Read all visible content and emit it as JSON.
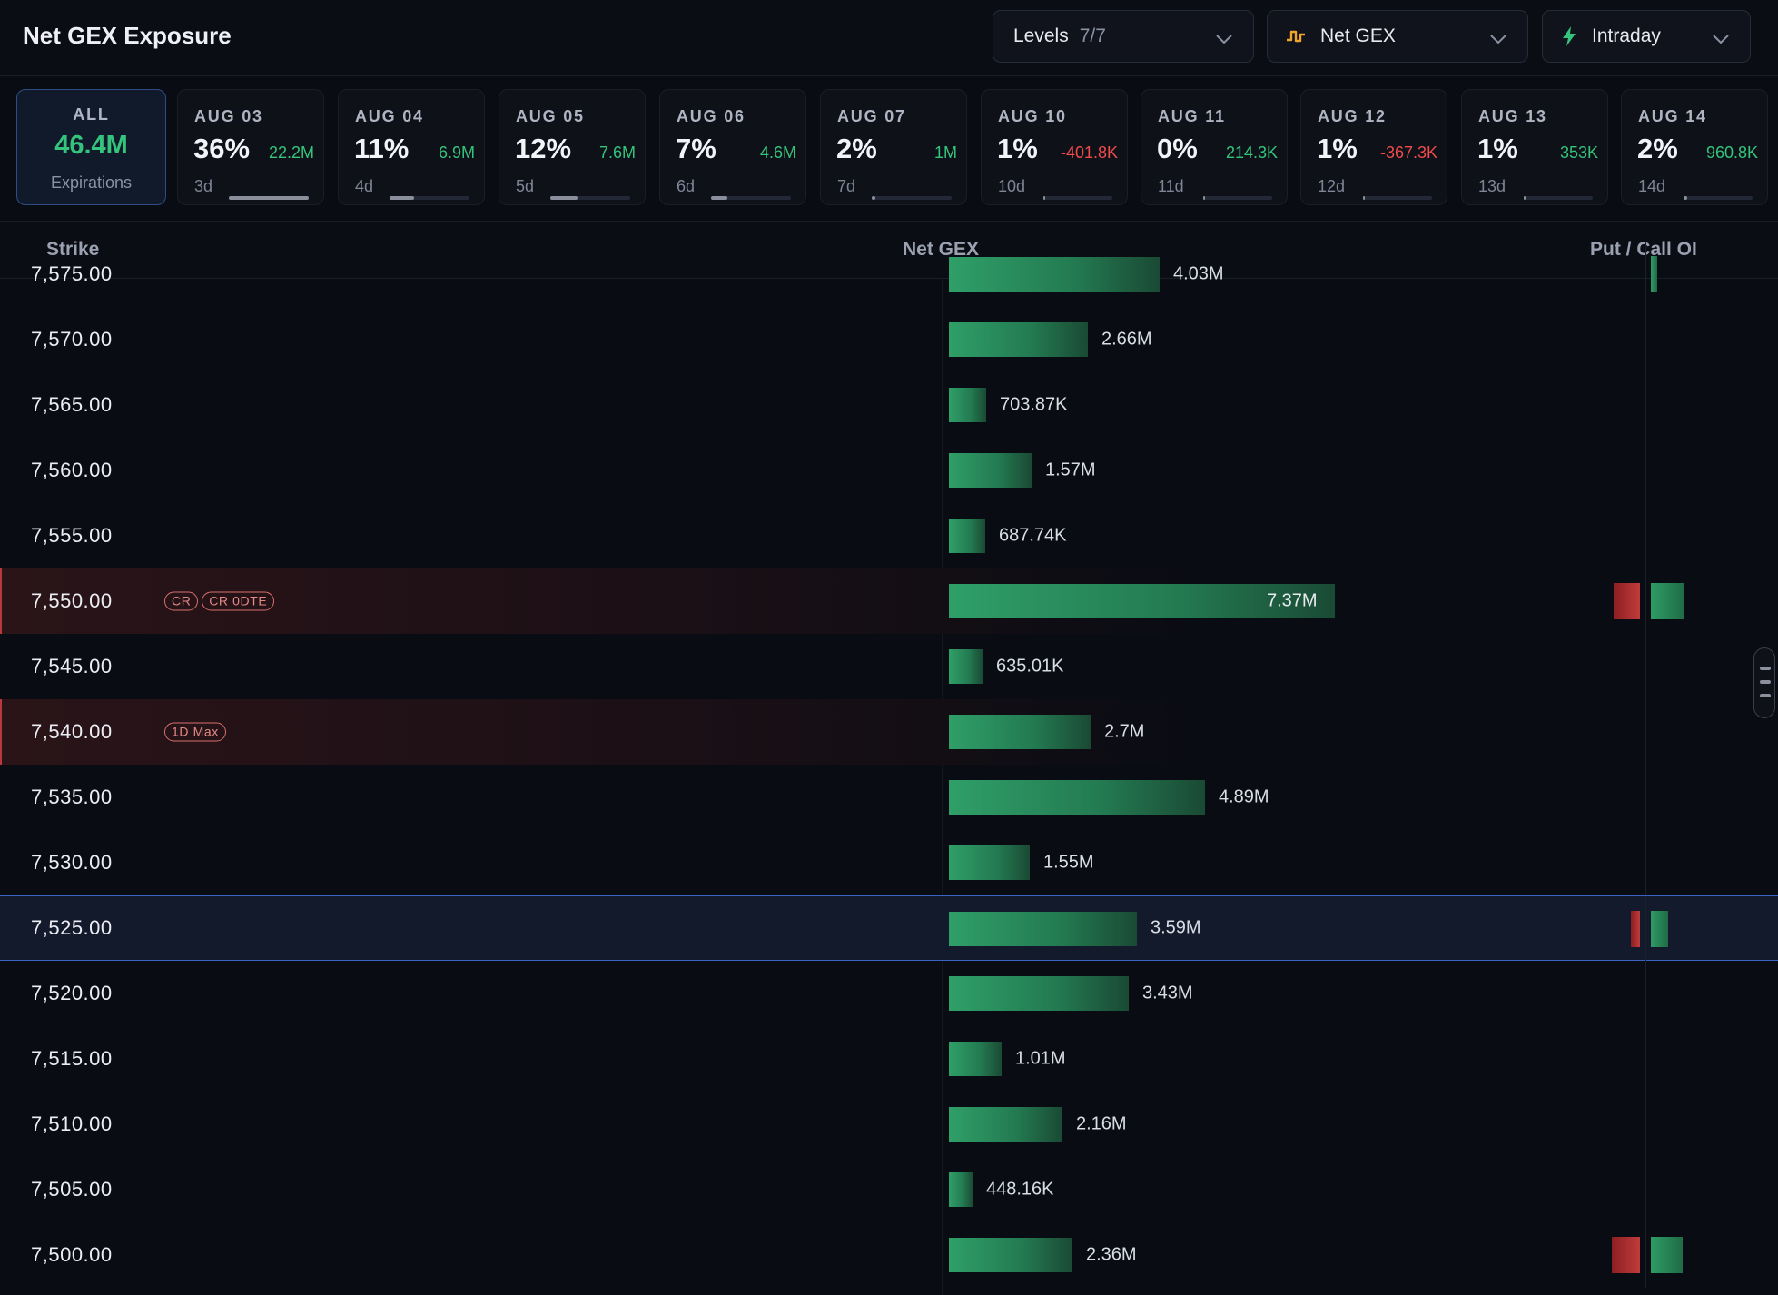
{
  "header": {
    "title": "Net GEX Exposure",
    "levels": {
      "label": "Levels",
      "count": "7/7"
    },
    "metric": {
      "label": "Net GEX",
      "icon": "wave-step-icon"
    },
    "mode": {
      "label": "Intraday",
      "icon": "lightning-icon"
    }
  },
  "colors": {
    "positive": "#34c47c",
    "negative": "#ef4b4b",
    "accent": "#3a63c4",
    "bar": "#2f9f68",
    "put": "#c13b3c"
  },
  "expirations": {
    "all": {
      "label": "ALL",
      "total": "46.4M",
      "sub": "Expirations"
    },
    "items": [
      {
        "date": "AUG 03",
        "pct": "36%",
        "value": "22.2M",
        "sign": "pos",
        "days": "3d",
        "share": 1.0
      },
      {
        "date": "AUG 04",
        "pct": "11%",
        "value": "6.9M",
        "sign": "pos",
        "days": "4d",
        "share": 0.31
      },
      {
        "date": "AUG 05",
        "pct": "12%",
        "value": "7.6M",
        "sign": "pos",
        "days": "5d",
        "share": 0.34
      },
      {
        "date": "AUG 06",
        "pct": "7%",
        "value": "4.6M",
        "sign": "pos",
        "days": "6d",
        "share": 0.21
      },
      {
        "date": "AUG 07",
        "pct": "2%",
        "value": "1M",
        "sign": "pos",
        "days": "7d",
        "share": 0.05
      },
      {
        "date": "AUG 10",
        "pct": "1%",
        "value": "-401.8K",
        "sign": "neg",
        "days": "10d",
        "share": 0.03
      },
      {
        "date": "AUG 11",
        "pct": "0%",
        "value": "214.3K",
        "sign": "pos",
        "days": "11d",
        "share": 0.02
      },
      {
        "date": "AUG 12",
        "pct": "1%",
        "value": "-367.3K",
        "sign": "neg",
        "days": "12d",
        "share": 0.03
      },
      {
        "date": "AUG 13",
        "pct": "1%",
        "value": "353K",
        "sign": "pos",
        "days": "13d",
        "share": 0.03
      },
      {
        "date": "AUG 14",
        "pct": "2%",
        "value": "960.8K",
        "sign": "pos",
        "days": "14d",
        "share": 0.05
      }
    ]
  },
  "table": {
    "columns": {
      "strike": "Strike",
      "netgex": "Net GEX",
      "oi": "Put / Call OI"
    },
    "max_abs_gex": 7.37,
    "rows": [
      {
        "strike": "7,575.00",
        "gex": 4.03,
        "gex_label": "4.03M",
        "put": 0,
        "call": 0.2
      },
      {
        "strike": "7,570.00",
        "gex": 2.66,
        "gex_label": "2.66M",
        "put": 0,
        "call": 0
      },
      {
        "strike": "7,565.00",
        "gex": 0.70387,
        "gex_label": "703.87K",
        "put": 0,
        "call": 0
      },
      {
        "strike": "7,560.00",
        "gex": 1.57,
        "gex_label": "1.57M",
        "put": 0,
        "call": 0
      },
      {
        "strike": "7,555.00",
        "gex": 0.68774,
        "gex_label": "687.74K",
        "put": 0,
        "call": 0
      },
      {
        "strike": "7,550.00",
        "gex": 7.37,
        "gex_label": "7.37M",
        "put": 0.85,
        "call": 1.0,
        "flag": true,
        "tags": [
          "CR",
          "CR 0DTE"
        ]
      },
      {
        "strike": "7,545.00",
        "gex": 0.63501,
        "gex_label": "635.01K",
        "put": 0,
        "call": 0
      },
      {
        "strike": "7,540.00",
        "gex": 2.7,
        "gex_label": "2.7M",
        "put": 0,
        "call": 0,
        "flag": true,
        "tags": [
          "1D Max"
        ]
      },
      {
        "strike": "7,535.00",
        "gex": 4.89,
        "gex_label": "4.89M",
        "put": 0,
        "call": 0
      },
      {
        "strike": "7,530.00",
        "gex": 1.55,
        "gex_label": "1.55M",
        "put": 0,
        "call": 0
      },
      {
        "strike": "7,525.00",
        "gex": 3.59,
        "gex_label": "3.59M",
        "put": 0.3,
        "call": 0.5,
        "current": true
      },
      {
        "strike": "7,520.00",
        "gex": 3.43,
        "gex_label": "3.43M",
        "put": 0,
        "call": 0
      },
      {
        "strike": "7,515.00",
        "gex": 1.01,
        "gex_label": "1.01M",
        "put": 0,
        "call": 0
      },
      {
        "strike": "7,510.00",
        "gex": 2.16,
        "gex_label": "2.16M",
        "put": 0,
        "call": 0
      },
      {
        "strike": "7,505.00",
        "gex": 0.44816,
        "gex_label": "448.16K",
        "put": 0,
        "call": 0
      },
      {
        "strike": "7,500.00",
        "gex": 2.36,
        "gex_label": "2.36M",
        "put": 0.9,
        "call": 0.95
      }
    ]
  }
}
